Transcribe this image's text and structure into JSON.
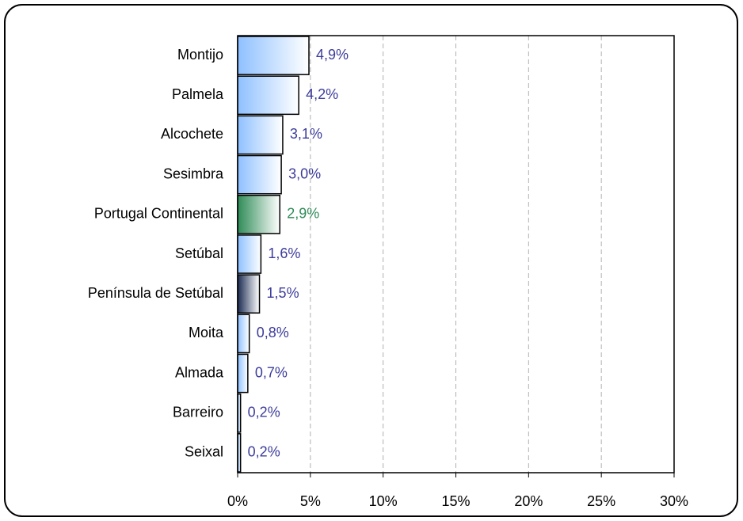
{
  "chart_data": {
    "type": "hbar",
    "categories": [
      "Montijo",
      "Palmela",
      "Alcochete",
      "Sesimbra",
      "Portugal Continental",
      "Setúbal",
      "Península de Setúbal",
      "Moita",
      "Almada",
      "Barreiro",
      "Seixal"
    ],
    "values": [
      4.9,
      4.2,
      3.1,
      3.0,
      2.9,
      1.6,
      1.5,
      0.8,
      0.7,
      0.2,
      0.2
    ],
    "value_labels": [
      "4,9%",
      "4,2%",
      "3,1%",
      "3,0%",
      "2,9%",
      "1,6%",
      "1,5%",
      "0,8%",
      "0,7%",
      "0,2%",
      "0,2%"
    ],
    "colors": [
      "#8ec0ff",
      "#8ec0ff",
      "#8ec0ff",
      "#8ec0ff",
      "#2e8b57",
      "#8ec0ff",
      "#1a2a50",
      "#8ec0ff",
      "#8ec0ff",
      "#8ec0ff",
      "#8ec0ff"
    ],
    "label_colors": [
      "#3c3c9c",
      "#3c3c9c",
      "#3c3c9c",
      "#3c3c9c",
      "#2e8b57",
      "#3c3c9c",
      "#3c3c9c",
      "#3c3c9c",
      "#3c3c9c",
      "#3c3c9c",
      "#3c3c9c"
    ],
    "xlim": [
      0,
      30
    ],
    "xticks": [
      {
        "value": 0,
        "label": "0%"
      },
      {
        "value": 5,
        "label": "5%"
      },
      {
        "value": 10,
        "label": "10%"
      },
      {
        "value": 15,
        "label": "15%"
      },
      {
        "value": 20,
        "label": "20%"
      },
      {
        "value": 25,
        "label": "25%"
      },
      {
        "value": 30,
        "label": "30%"
      }
    ],
    "grid": true
  }
}
